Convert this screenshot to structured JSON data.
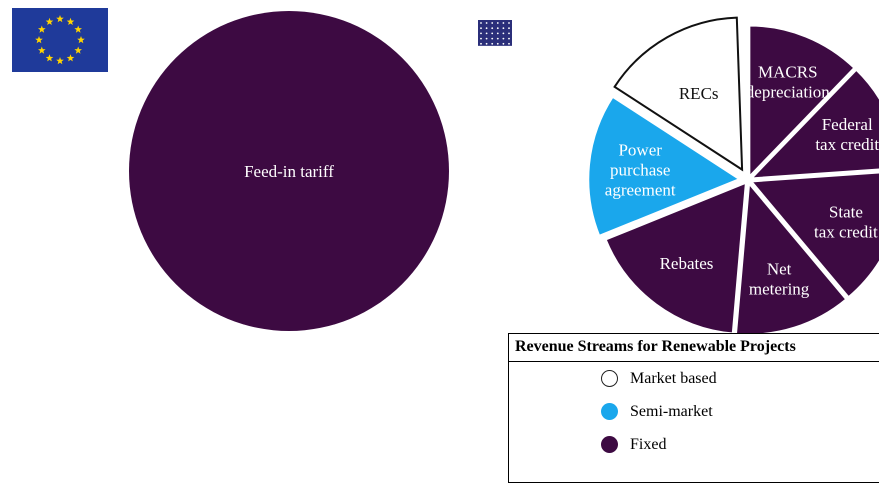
{
  "left_chart": {
    "slices": [
      {
        "label": "Feed-in tariff",
        "category": "Fixed"
      }
    ]
  },
  "right_chart": {
    "slices": [
      {
        "label": "RECs",
        "category": "Market based"
      },
      {
        "label": "MACRS depreciation",
        "lines": [
          "MACRS",
          "depreciation"
        ],
        "category": "Fixed"
      },
      {
        "label": "Federal tax credit",
        "lines": [
          "Federal",
          "tax credit"
        ],
        "category": "Fixed"
      },
      {
        "label": "State tax credit",
        "lines": [
          "State",
          "tax credit"
        ],
        "category": "Fixed"
      },
      {
        "label": "Net metering",
        "lines": [
          "Net",
          "metering"
        ],
        "category": "Fixed"
      },
      {
        "label": "Rebates",
        "category": "Fixed"
      },
      {
        "label": "Power purchase agreement",
        "lines": [
          "Power",
          "purchase",
          "agreement"
        ],
        "category": "Semi-market"
      }
    ]
  },
  "legend": {
    "title": "Revenue Streams for Renewable Projects",
    "items": [
      {
        "label": "Market based",
        "color": "#ffffff"
      },
      {
        "label": "Semi-market",
        "color": "#1aa7ec"
      },
      {
        "label": "Fixed",
        "color": "#3d0a42"
      }
    ]
  },
  "flags": {
    "left": "eu-flag-icon",
    "right": "us-flag-icon"
  },
  "colors": {
    "fixed": "#3d0a42",
    "semi_market": "#1aa7ec",
    "market": "#ffffff"
  }
}
